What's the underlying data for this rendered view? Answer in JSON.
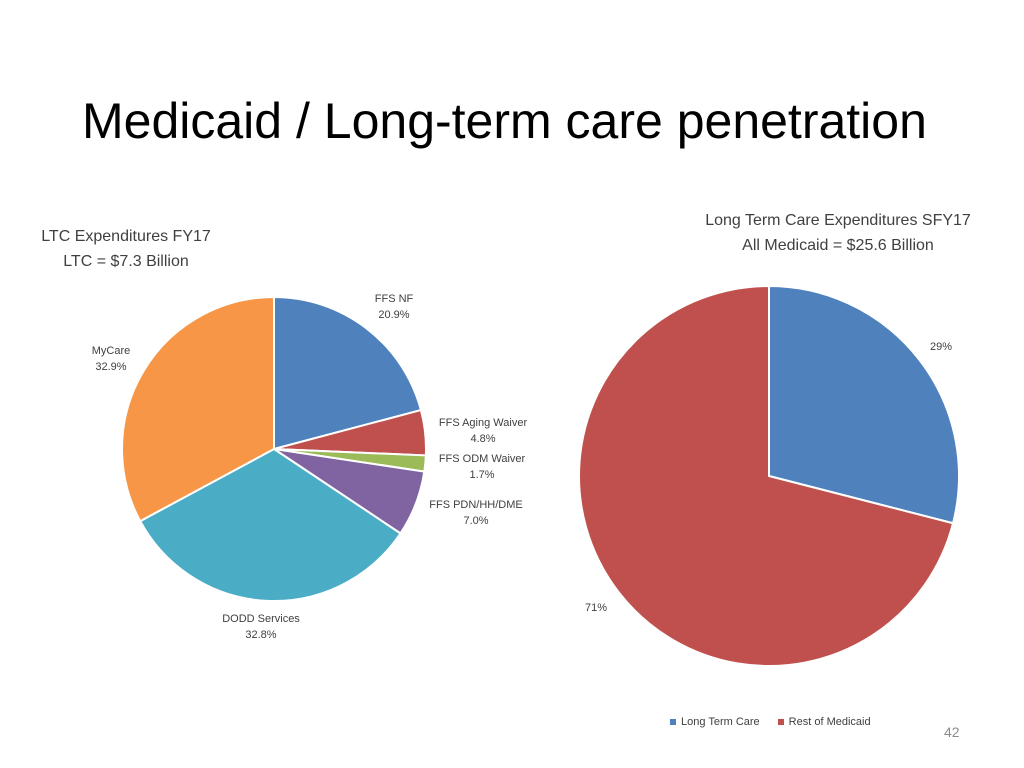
{
  "slide": {
    "title": "Medicaid / Long-term care penetration",
    "page_number": "42"
  },
  "chart_data": [
    {
      "type": "pie",
      "title_lines": [
        "LTC  Expenditures FY17",
        "LTC = $7.3 Billion"
      ],
      "slices": [
        {
          "name": "FFS NF",
          "value": 20.9,
          "label": "20.9%",
          "color": "#4F81BD"
        },
        {
          "name": "FFS Aging Waiver",
          "value": 4.8,
          "label": "4.8%",
          "color": "#C0504D"
        },
        {
          "name": "FFS ODM Waiver",
          "value": 1.7,
          "label": "1.7%",
          "color": "#9BBB59"
        },
        {
          "name": "FFS PDN/HH/DME",
          "value": 7.0,
          "label": "7.0%",
          "color": "#8064A2"
        },
        {
          "name": "DODD Services",
          "value": 32.8,
          "label": "32.8%",
          "color": "#4BACC6"
        },
        {
          "name": "MyCare",
          "value": 32.9,
          "label": "32.9%",
          "color": "#F79646"
        }
      ]
    },
    {
      "type": "pie",
      "title_lines": [
        "Long Term Care Expenditures SFY17",
        "All Medicaid =  $25.6 Billion"
      ],
      "slices": [
        {
          "name": "Long Term Care",
          "value": 29,
          "label": "29%",
          "color": "#4F81BD"
        },
        {
          "name": "Rest of Medicaid",
          "value": 71,
          "label": "71%",
          "color": "#C0504D"
        }
      ],
      "legend": [
        "Long Term Care",
        "Rest of Medicaid"
      ],
      "legend_position": "bottom"
    }
  ]
}
